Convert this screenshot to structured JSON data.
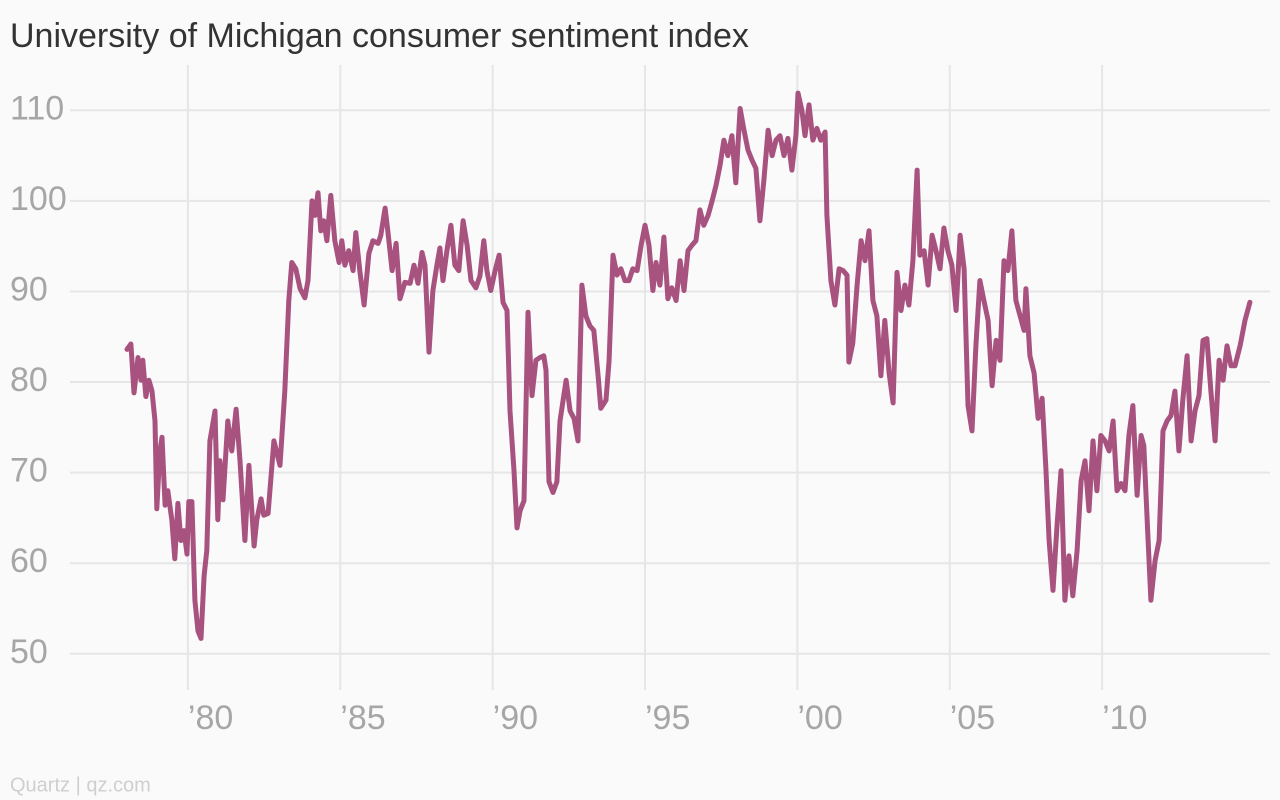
{
  "chart_data": {
    "type": "line",
    "title": "University of Michigan consumer sentiment index",
    "source": "Quartz | qz.com",
    "xlim": [
      1976.13,
      2015.51
    ],
    "ylim": [
      46,
      115
    ],
    "yticks": [
      50,
      60,
      70,
      80,
      90,
      100,
      110
    ],
    "xticks": [
      {
        "value": 1980,
        "label": "’80"
      },
      {
        "value": 1985,
        "label": "’85"
      },
      {
        "value": 1990,
        "label": "’90"
      },
      {
        "value": 1995,
        "label": "’95"
      },
      {
        "value": 2000,
        "label": "’00"
      },
      {
        "value": 2005,
        "label": "’05"
      },
      {
        "value": 2010,
        "label": "’10"
      }
    ],
    "grid": true,
    "x": [
      1978.0,
      1978.13,
      1978.23,
      1978.36,
      1978.46,
      1978.52,
      1978.62,
      1978.72,
      1978.82,
      1978.92,
      1978.98,
      1979.08,
      1979.15,
      1979.25,
      1979.34,
      1979.47,
      1979.57,
      1979.67,
      1979.77,
      1979.87,
      1979.97,
      1980.03,
      1980.13,
      1980.23,
      1980.33,
      1980.43,
      1980.53,
      1980.62,
      1980.72,
      1980.89,
      1980.98,
      1981.05,
      1981.15,
      1981.31,
      1981.44,
      1981.58,
      1981.71,
      1981.87,
      1982.0,
      1982.17,
      1982.26,
      1982.4,
      1982.49,
      1982.63,
      1982.82,
      1983.02,
      1983.18,
      1983.31,
      1983.41,
      1983.54,
      1983.68,
      1983.84,
      1983.94,
      1984.07,
      1984.17,
      1984.27,
      1984.36,
      1984.46,
      1984.56,
      1984.69,
      1984.82,
      1984.96,
      1985.05,
      1985.15,
      1985.28,
      1985.42,
      1985.51,
      1985.64,
      1985.78,
      1985.94,
      1986.07,
      1986.24,
      1986.33,
      1986.47,
      1986.56,
      1986.7,
      1986.83,
      1986.96,
      1987.12,
      1987.29,
      1987.42,
      1987.55,
      1987.68,
      1987.78,
      1987.91,
      1988.04,
      1988.17,
      1988.27,
      1988.37,
      1988.5,
      1988.63,
      1988.76,
      1988.89,
      1989.03,
      1989.16,
      1989.29,
      1989.45,
      1989.58,
      1989.71,
      1989.81,
      1989.94,
      1990.08,
      1990.21,
      1990.34,
      1990.47,
      1990.57,
      1990.7,
      1990.8,
      1990.9,
      1991.03,
      1991.16,
      1991.29,
      1991.42,
      1991.55,
      1991.68,
      1991.75,
      1991.85,
      1991.98,
      1992.11,
      1992.21,
      1992.41,
      1992.54,
      1992.67,
      1992.8,
      1992.93,
      1993.06,
      1993.19,
      1993.32,
      1993.46,
      1993.55,
      1993.72,
      1993.82,
      1993.95,
      1994.08,
      1994.21,
      1994.34,
      1994.47,
      1994.6,
      1994.74,
      1994.87,
      1995.0,
      1995.13,
      1995.26,
      1995.36,
      1995.49,
      1995.62,
      1995.75,
      1995.88,
      1996.02,
      1996.15,
      1996.28,
      1996.41,
      1996.54,
      1996.67,
      1996.8,
      1996.93,
      1997.07,
      1997.2,
      1997.33,
      1997.46,
      1997.59,
      1997.72,
      1997.85,
      1997.98,
      1998.12,
      1998.25,
      1998.38,
      1998.51,
      1998.64,
      1998.77,
      1998.9,
      1999.04,
      1999.17,
      1999.3,
      1999.43,
      1999.56,
      1999.69,
      1999.82,
      1999.95,
      2000.02,
      2000.15,
      2000.25,
      2000.38,
      2000.51,
      2000.64,
      2000.77,
      2000.91,
      2000.97,
      2001.1,
      2001.23,
      2001.37,
      2001.5,
      2001.63,
      2001.69,
      2001.82,
      2001.96,
      2002.09,
      2002.22,
      2002.35,
      2002.48,
      2002.61,
      2002.74,
      2002.87,
      2003.01,
      2003.14,
      2003.27,
      2003.4,
      2003.53,
      2003.66,
      2003.79,
      2003.93,
      2004.02,
      2004.16,
      2004.29,
      2004.42,
      2004.55,
      2004.68,
      2004.81,
      2004.94,
      2005.07,
      2005.21,
      2005.34,
      2005.47,
      2005.6,
      2005.73,
      2005.86,
      2005.99,
      2006.12,
      2006.26,
      2006.39,
      2006.52,
      2006.65,
      2006.78,
      2006.91,
      2007.04,
      2007.17,
      2007.31,
      2007.44,
      2007.5,
      2007.63,
      2007.77,
      2007.9,
      2008.03,
      2008.16,
      2008.26,
      2008.39,
      2008.52,
      2008.65,
      2008.78,
      2008.91,
      2009.04,
      2009.18,
      2009.31,
      2009.44,
      2009.57,
      2009.7,
      2009.83,
      2009.96,
      2010.1,
      2010.23,
      2010.36,
      2010.49,
      2010.62,
      2010.75,
      2010.88,
      2011.01,
      2011.15,
      2011.28,
      2011.37,
      2011.51,
      2011.6,
      2011.74,
      2011.87,
      2012.0,
      2012.13,
      2012.26,
      2012.39,
      2012.52,
      2012.65,
      2012.79,
      2012.92,
      2013.05,
      2013.18,
      2013.31,
      2013.44,
      2013.57,
      2013.71,
      2013.84,
      2013.97,
      2014.1,
      2014.23,
      2014.36,
      2014.53,
      2014.69,
      2014.85
    ],
    "series": [
      {
        "name": "Consumer sentiment",
        "color": "#a8527f",
        "values": [
          83.6,
          84.2,
          78.8,
          82.7,
          80.2,
          82.4,
          78.4,
          80.2,
          79,
          75.7,
          66,
          72.4,
          73.9,
          66.4,
          68,
          64.8,
          60.5,
          66.6,
          62.5,
          63.6,
          61,
          66.8,
          66.8,
          55.9,
          52.5,
          51.7,
          58.6,
          61.4,
          73.5,
          76.8,
          64.8,
          71.3,
          67,
          75.7,
          72.4,
          77,
          71.3,
          62.5,
          70.8,
          61.9,
          64.8,
          67.1,
          65.3,
          65.5,
          73.5,
          70.8,
          79,
          89,
          93.2,
          92.5,
          90.3,
          89.3,
          91.2,
          100,
          98.4,
          100.9,
          96.7,
          97.8,
          95.6,
          100.6,
          95.6,
          93.2,
          95.6,
          92.9,
          94.5,
          92.3,
          96.5,
          92.3,
          88.5,
          94.2,
          95.6,
          95.3,
          96.2,
          99.2,
          96.7,
          92.3,
          95.3,
          89.2,
          91,
          90.9,
          92.9,
          90.9,
          94.3,
          92.9,
          83.3,
          90.1,
          92.9,
          94.8,
          91.2,
          94.5,
          97.3,
          92.9,
          92.3,
          97.8,
          95.1,
          91.2,
          90.4,
          91.7,
          95.6,
          92.3,
          90.1,
          92.3,
          94,
          88.8,
          87.9,
          76.8,
          70.2,
          63.9,
          65.8,
          66.9,
          87.7,
          78.5,
          82.4,
          82.7,
          82.9,
          81.3,
          69,
          67.8,
          69,
          75.7,
          80.2,
          76.8,
          76,
          73.5,
          90.7,
          87.3,
          86.2,
          85.7,
          80.7,
          77.1,
          78,
          82.4,
          94,
          91.8,
          92.5,
          91.2,
          91.2,
          92.5,
          92.3,
          95.1,
          97.3,
          95.1,
          90.1,
          93.2,
          90.7,
          96,
          89.2,
          90.4,
          89,
          93.4,
          90.1,
          94.5,
          95.1,
          95.6,
          99,
          97.3,
          98.4,
          100,
          101.7,
          103.9,
          106.7,
          105,
          107.2,
          102,
          110.2,
          107.8,
          105.6,
          104.5,
          103.6,
          97.8,
          102.3,
          107.8,
          105,
          106.7,
          107.2,
          105,
          106.9,
          103.4,
          107.2,
          111.9,
          110,
          107.2,
          110.6,
          106.7,
          108,
          106.7,
          107.6,
          98.4,
          91.2,
          88.5,
          92.5,
          92.3,
          91.8,
          82.2,
          84.3,
          90.7,
          95.6,
          93.4,
          96.7,
          89,
          87.3,
          80.7,
          86.8,
          81,
          77.7,
          92.1,
          87.9,
          90.7,
          88.5,
          93.4,
          103.4,
          94,
          94.5,
          90.7,
          96.2,
          94.5,
          92.5,
          97,
          94.5,
          92.9,
          87.9,
          96.2,
          92.5,
          77.4,
          74.6,
          84,
          91.2,
          89,
          86.8,
          79.6,
          84.6,
          82.4,
          93.4,
          92.3,
          96.7,
          89,
          87.3,
          85.7,
          90.3,
          82.9,
          81,
          76,
          78.2,
          70.2,
          62.5,
          57,
          64.1,
          70.2,
          55.9,
          60.8,
          56.4,
          61.4,
          69.1,
          71.3,
          65.8,
          73.5,
          68,
          74.1,
          73.5,
          72.4,
          75.7,
          68,
          68.8,
          68,
          74.1,
          77.4,
          67.5,
          74.1,
          73,
          62.5,
          55.9,
          60.3,
          62.5,
          74.6,
          75.7,
          76.3,
          79,
          72.4,
          78,
          82.9,
          73.5,
          76.8,
          78.5,
          84.6,
          84.8,
          79,
          73.5,
          82.4,
          80.2,
          84,
          81.8,
          81.8,
          84,
          86.8,
          88.8
        ]
      }
    ]
  }
}
